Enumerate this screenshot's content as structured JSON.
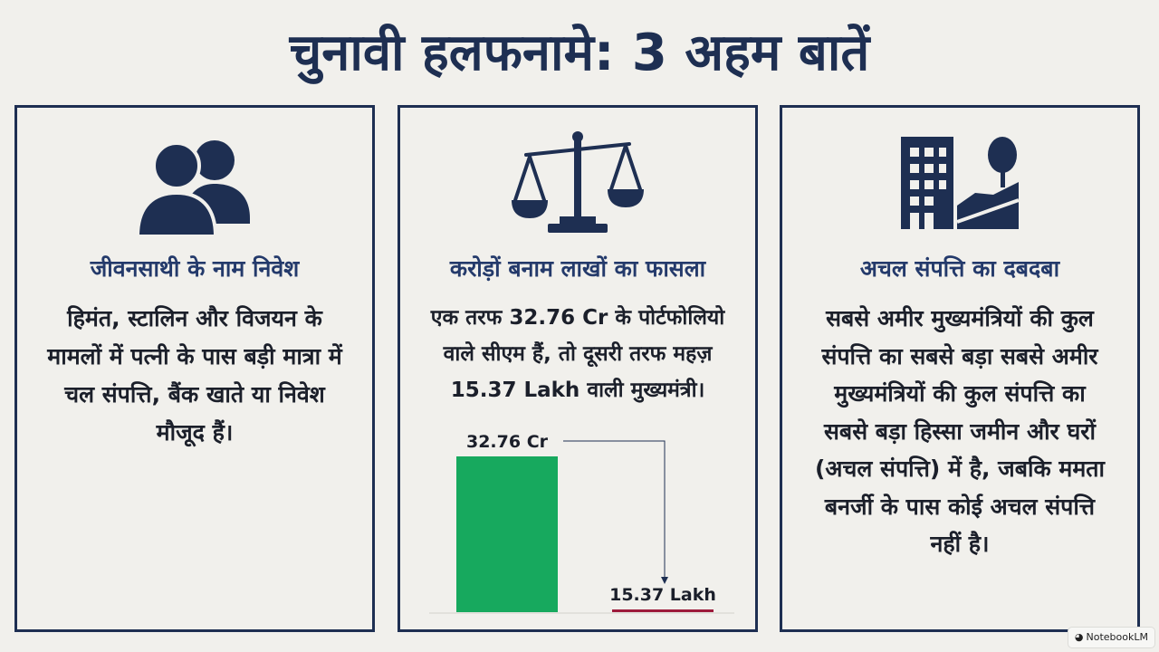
{
  "title": "चुनावी हलफनामे: 3 अहम बातें",
  "cards": [
    {
      "icon": "people-icon",
      "heading": "जीवनसाथी के नाम निवेश",
      "text": "हिमंत, स्टालिन और विजयन के मामलों में पत्नी के पास बड़ी मात्रा में चल संपत्ति, बैंक खाते या निवेश मौजूद हैं।"
    },
    {
      "icon": "scales-icon",
      "heading": "करोड़ों बनाम लाखों का फासला",
      "text": "एक तरफ 32.76 Cr के पोर्टफोलियो वाले सीएम हैं, तो दूसरी तरफ महज़ 15.37 Lakh वाली मुख्यमंत्री।"
    },
    {
      "icon": "building-land-icon",
      "heading": "अचल संपत्ति का दबदबा",
      "text": "सबसे अमीर मुख्यमंत्रियों की कुल संपत्ति का सबसे बड़ा सबसे अमीर मुख्यमंत्रियों की कुल संपत्ति का सबसे बड़ा हिस्सा जमीन और घरों (अचल संपत्ति) में है, जबकि ममता बनर्जी के पास कोई अचल संपत्ति नहीं है।"
    }
  ],
  "chart_data": {
    "type": "bar",
    "categories": [
      "",
      ""
    ],
    "values": [
      32.76,
      0.1537
    ],
    "value_labels": [
      "32.76 Cr",
      "15.37 Lakh"
    ],
    "unit": "Cr",
    "colors": [
      "#17a95e",
      "#9e1c3c"
    ],
    "title": "",
    "xlabel": "",
    "ylabel": ""
  },
  "badge": {
    "icon": "notebooklm-icon",
    "label": "NotebookLM"
  }
}
